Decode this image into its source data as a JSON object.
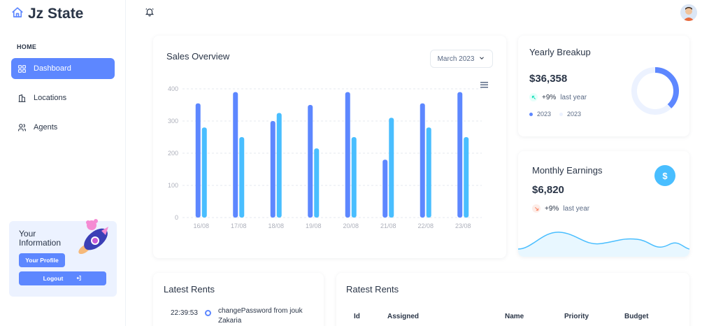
{
  "brand": {
    "name": "Jz State"
  },
  "sidebar": {
    "heading": "HOME",
    "items": [
      {
        "label": "Dashboard",
        "icon": "dashboard-icon",
        "active": true
      },
      {
        "label": "Locations",
        "icon": "building-icon",
        "active": false
      },
      {
        "label": "Agents",
        "icon": "users-icon",
        "active": false
      }
    ],
    "info": {
      "title": "Your Information",
      "profile_label": "Your Profile",
      "logout_label": "Logout"
    }
  },
  "header": {
    "notifications_icon": "bell-icon",
    "avatar": "user-avatar"
  },
  "sales": {
    "title": "Sales Overview",
    "month": "March 2023"
  },
  "chart_data": {
    "type": "bar",
    "categories": [
      "16/08",
      "17/08",
      "18/08",
      "19/08",
      "20/08",
      "21/08",
      "22/08",
      "23/08"
    ],
    "series": [
      {
        "values": [
          355,
          390,
          300,
          350,
          390,
          180,
          355,
          390
        ],
        "color": "#5d87ff"
      },
      {
        "values": [
          280,
          250,
          325,
          215,
          250,
          310,
          280,
          250
        ],
        "color": "#49beff"
      }
    ],
    "yticks": [
      0,
      100,
      200,
      300,
      400
    ],
    "ylim": [
      0,
      400
    ],
    "grid": true
  },
  "yearly": {
    "title": "Yearly Breakup",
    "value": "$36,358",
    "change": "+9%",
    "change_label": "last year",
    "legend": [
      "2023",
      "2023"
    ],
    "donut_share": 0.38,
    "colors": {
      "primary": "#5d87ff",
      "light": "#ecf2ff"
    }
  },
  "monthly": {
    "title": "Monthly Earnings",
    "value": "$6,820",
    "change": "+9%",
    "change_label": "last year",
    "currency_icon": "$"
  },
  "latest_rents": {
    "title": "Latest Rents",
    "items": [
      {
        "time": "22:39:53",
        "text": "changePassword from jouk Zakaria"
      }
    ]
  },
  "ratest_rents": {
    "title": "Ratest Rents",
    "columns": [
      "Id",
      "Assigned",
      "Name",
      "Priority",
      "Budget"
    ]
  }
}
